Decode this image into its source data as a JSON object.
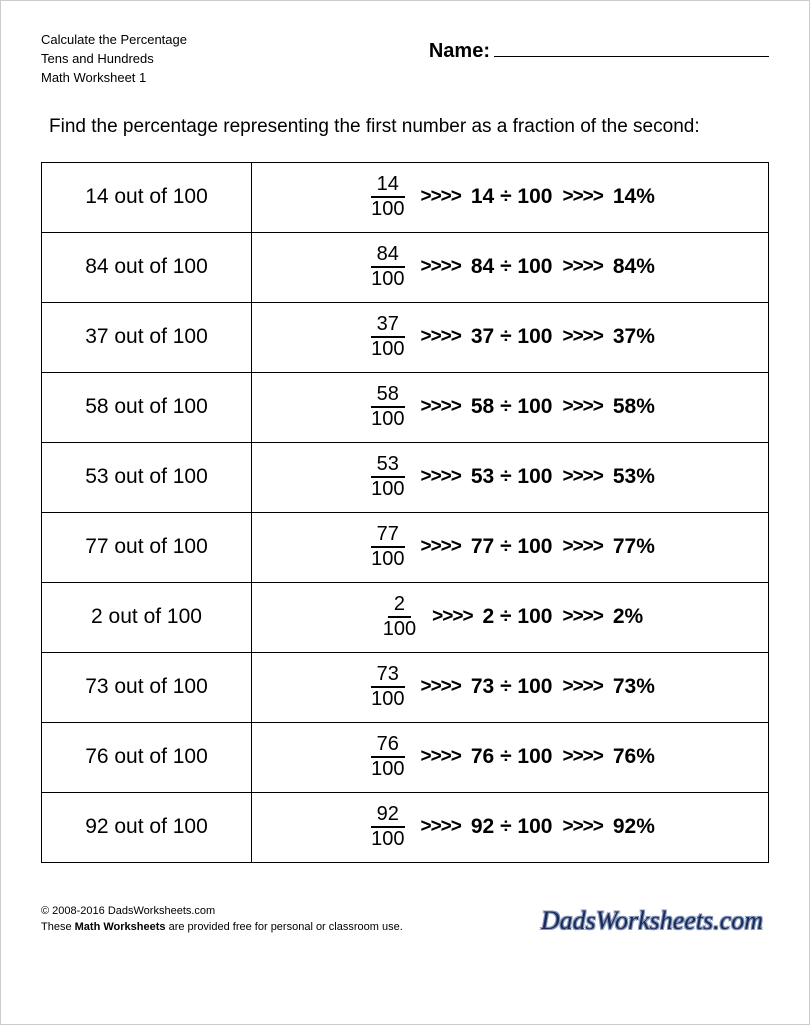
{
  "header": {
    "line1": "Calculate the Percentage",
    "line2": "Tens and Hundreds",
    "line3": "Math Worksheet 1",
    "name_label": "Name:"
  },
  "instructions": "Find the percentage representing the first number as a fraction of the second:",
  "arrow_glyph": ">>>>",
  "divide_glyph": "÷",
  "problems": [
    {
      "numerator": "14",
      "denominator": "100",
      "prompt": "14 out of 100",
      "division": "14 ÷ 100",
      "result": "14%"
    },
    {
      "numerator": "84",
      "denominator": "100",
      "prompt": "84 out of 100",
      "division": "84 ÷ 100",
      "result": "84%"
    },
    {
      "numerator": "37",
      "denominator": "100",
      "prompt": "37 out of 100",
      "division": "37 ÷ 100",
      "result": "37%"
    },
    {
      "numerator": "58",
      "denominator": "100",
      "prompt": "58 out of 100",
      "division": "58 ÷ 100",
      "result": "58%"
    },
    {
      "numerator": "53",
      "denominator": "100",
      "prompt": "53 out of 100",
      "division": "53 ÷ 100",
      "result": "53%"
    },
    {
      "numerator": "77",
      "denominator": "100",
      "prompt": "77 out of 100",
      "division": "77 ÷ 100",
      "result": "77%"
    },
    {
      "numerator": "2",
      "denominator": "100",
      "prompt": "2 out of 100",
      "division": "2 ÷ 100",
      "result": "2%"
    },
    {
      "numerator": "73",
      "denominator": "100",
      "prompt": "73 out of 100",
      "division": "73 ÷ 100",
      "result": "73%"
    },
    {
      "numerator": "76",
      "denominator": "100",
      "prompt": "76 out of 100",
      "division": "76 ÷ 100",
      "result": "76%"
    },
    {
      "numerator": "92",
      "denominator": "100",
      "prompt": "92 out of 100",
      "division": "92 ÷ 100",
      "result": "92%"
    }
  ],
  "footer": {
    "copyright": "© 2008-2016 DadsWorksheets.com",
    "usage_prefix": "These",
    "usage_bold": "Math Worksheets",
    "usage_suffix": "are provided free for personal or classroom use.",
    "logo_text": "DadsWorksheets.com"
  },
  "colors": {
    "page_bg": "#ffffff",
    "text": "#000000",
    "border": "#000000",
    "logo": "#1a2a5a"
  }
}
